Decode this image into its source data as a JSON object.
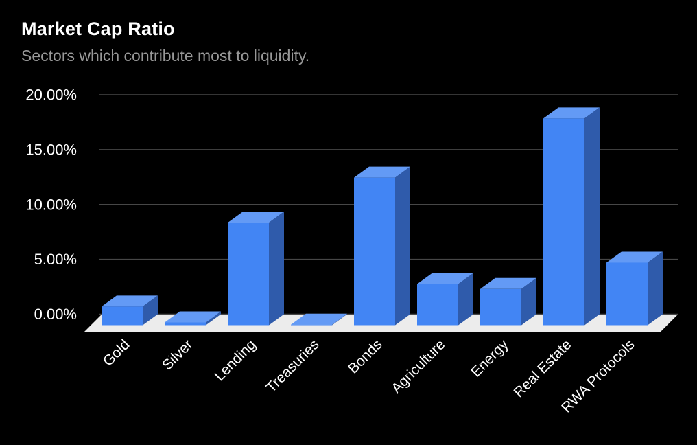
{
  "chart_data": {
    "type": "bar",
    "style": "3d-column",
    "title": "Market Cap Ratio",
    "subtitle": "Sectors which contribute most to liquidity.",
    "categories": [
      "Gold",
      "Silver",
      "Lending",
      "Treasuries",
      "Bonds",
      "Agriculture",
      "Energy",
      "Real Estate",
      "RWA Protocols"
    ],
    "values": [
      1.7,
      0.25,
      9.35,
      0.05,
      13.45,
      3.75,
      3.3,
      18.85,
      5.7
    ],
    "value_unit": "percent",
    "xlabel": "",
    "ylabel": "",
    "ylim": [
      0,
      20
    ],
    "ytick_values": [
      0,
      5,
      10,
      15,
      20
    ],
    "yticks": [
      "0.00%",
      "5.00%",
      "10.00%",
      "15.00%",
      "20.00%"
    ],
    "grid": true,
    "legend": "none",
    "category_label_rotation_deg": -45,
    "colors": {
      "background": "#000000",
      "bar_front": "#4285F4",
      "bar_top": "#639AF5",
      "bar_side": "#2F5BAB",
      "gridline": "#474747",
      "floor": "#ECECEC",
      "title_text": "#FFFFFF",
      "subtitle_text": "#989898",
      "axis_text": "#FFFFFF"
    }
  }
}
